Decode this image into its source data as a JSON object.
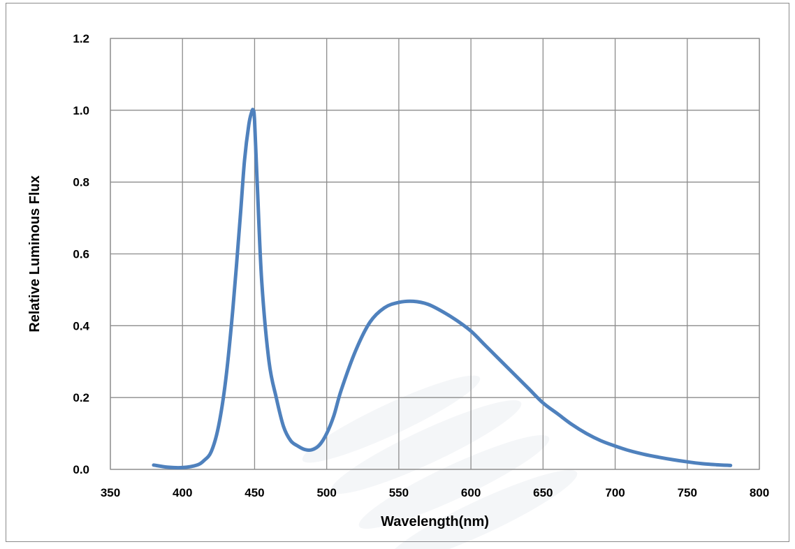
{
  "chart_data": {
    "type": "line",
    "title": "",
    "xlabel": "Wavelength(nm)",
    "ylabel": "Relative Luminous Flux",
    "xlim": [
      350,
      800
    ],
    "ylim": [
      0,
      1.2
    ],
    "x_ticks": [
      "350",
      "400",
      "450",
      "500",
      "550",
      "600",
      "650",
      "700",
      "750",
      "800"
    ],
    "y_ticks": [
      "0.0",
      "0.2",
      "0.4",
      "0.6",
      "0.8",
      "1.0",
      "1.2"
    ],
    "grid": true,
    "legend": "none",
    "line_color": "#4f81bd",
    "series": [
      {
        "x": [
          380,
          390,
          400,
          410,
          415,
          420,
          425,
          430,
          435,
          440,
          443,
          446,
          448,
          449,
          450,
          452,
          455,
          460,
          465,
          470,
          475,
          480,
          485,
          490,
          495,
          500,
          505,
          510,
          520,
          530,
          540,
          550,
          560,
          570,
          580,
          590,
          600,
          610,
          620,
          630,
          640,
          650,
          660,
          670,
          680,
          690,
          700,
          710,
          720,
          730,
          740,
          750,
          760,
          770,
          780
        ],
        "y": [
          0.012,
          0.006,
          0.005,
          0.012,
          0.025,
          0.05,
          0.12,
          0.25,
          0.45,
          0.7,
          0.86,
          0.96,
          0.995,
          1.0,
          0.97,
          0.78,
          0.52,
          0.3,
          0.2,
          0.12,
          0.08,
          0.065,
          0.055,
          0.055,
          0.068,
          0.1,
          0.15,
          0.22,
          0.33,
          0.41,
          0.45,
          0.465,
          0.468,
          0.46,
          0.44,
          0.415,
          0.385,
          0.345,
          0.305,
          0.265,
          0.225,
          0.185,
          0.155,
          0.125,
          0.1,
          0.08,
          0.065,
          0.052,
          0.042,
          0.034,
          0.027,
          0.021,
          0.016,
          0.013,
          0.011
        ]
      }
    ]
  }
}
